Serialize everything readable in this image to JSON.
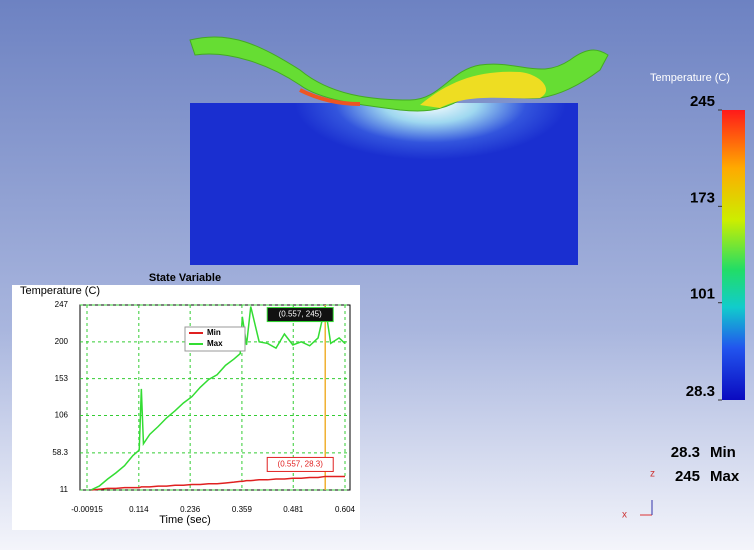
{
  "colorbar": {
    "title": "Temperature (C)",
    "ticks": [
      245,
      173,
      101,
      28.3
    ],
    "min_value": 28.3,
    "min_label": "Min",
    "max_value": 245,
    "max_label": "Max"
  },
  "triad_labels": [
    "z",
    "x"
  ],
  "chart_data": {
    "type": "line",
    "title": "State Variable",
    "y_label": "Temperature (C)",
    "x_label": "Time (sec)",
    "x": [
      0,
      0.02,
      0.04,
      0.06,
      0.08,
      0.1,
      0.115,
      0.12,
      0.125,
      0.14,
      0.16,
      0.18,
      0.2,
      0.22,
      0.24,
      0.26,
      0.28,
      0.3,
      0.32,
      0.34,
      0.355,
      0.36,
      0.37,
      0.38,
      0.4,
      0.42,
      0.44,
      0.46,
      0.48,
      0.5,
      0.52,
      0.54,
      0.557,
      0.57,
      0.59,
      0.604
    ],
    "series": [
      {
        "name": "Min",
        "color": "#e02020",
        "values": [
          11,
          12,
          13,
          13,
          14,
          14,
          14,
          15,
          15,
          15,
          16,
          16,
          17,
          17,
          18,
          18,
          19,
          19,
          20,
          21,
          22,
          22,
          23,
          23,
          24,
          24,
          25,
          25,
          26,
          26,
          27,
          27,
          28.3,
          28.3,
          28.3,
          28.3
        ]
      },
      {
        "name": "Max",
        "color": "#33dd33",
        "values": [
          11,
          16,
          25,
          33,
          42,
          55,
          62,
          140,
          70,
          82,
          92,
          103,
          112,
          122,
          130,
          142,
          152,
          158,
          170,
          178,
          185,
          232,
          196,
          245,
          200,
          198,
          192,
          210,
          196,
          200,
          195,
          205,
          245,
          198,
          205,
          198
        ]
      }
    ],
    "xlim": [
      -0.00915,
      0.604
    ],
    "xticks": [
      -0.00915,
      0.114,
      0.236,
      0.359,
      0.481,
      0.604
    ],
    "ylim": [
      11,
      247
    ],
    "yticks": [
      11,
      58.3,
      106,
      153,
      200,
      247
    ],
    "grid": true,
    "cursor_x": 0.557,
    "annotations": [
      {
        "text": "(0.557, 245)",
        "x": 0.557,
        "y": 245
      },
      {
        "text": "(0.557, 28.3)",
        "x": 0.557,
        "y": 28.3
      }
    ]
  }
}
